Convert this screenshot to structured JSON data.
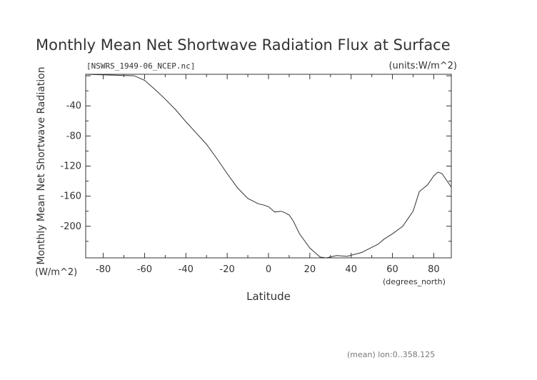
{
  "chart_data": {
    "type": "line",
    "title": "Monthly Mean Net Shortwave Radiation Flux at Surface",
    "file_label": "[NSWRS_1949-06_NCEP.nc]",
    "units_label": "(units:W/m^2)",
    "xlabel": "Latitude",
    "xunits": "(degrees_north)",
    "ylabel": "Monthly Mean Net Shortwave Radiation",
    "yunits": "(W/m^2)",
    "footer": "(mean) lon:0..358.125",
    "xlim": [
      -88.5,
      88.5
    ],
    "ylim": [
      -242,
      2
    ],
    "xticks": [
      -80,
      -60,
      -40,
      -20,
      0,
      20,
      40,
      60,
      80
    ],
    "yticks": [
      -40,
      -80,
      -120,
      -160,
      -200
    ],
    "series": [
      {
        "x": [
          -88.5,
          -65,
          -60,
          -55,
          -50,
          -45,
          -40,
          -35,
          -30,
          -25,
          -20,
          -15,
          -10,
          -5,
          -2,
          0,
          3,
          6,
          8,
          10,
          12,
          15,
          20,
          25,
          28,
          33,
          38,
          45,
          50,
          53,
          56,
          60,
          65,
          70,
          73,
          77,
          80,
          82,
          84,
          86,
          88.5
        ],
        "y": [
          2,
          0,
          -6,
          -18,
          -31,
          -45,
          -61,
          -76,
          -91,
          -110,
          -130,
          -149,
          -163,
          -170,
          -172,
          -174,
          -181,
          -180,
          -182,
          -185,
          -193,
          -210,
          -229,
          -241,
          -242,
          -239,
          -240,
          -235,
          -228,
          -224,
          -217,
          -210,
          -200,
          -180,
          -154,
          -145,
          -133,
          -128,
          -130,
          -138,
          -148
        ]
      }
    ]
  }
}
